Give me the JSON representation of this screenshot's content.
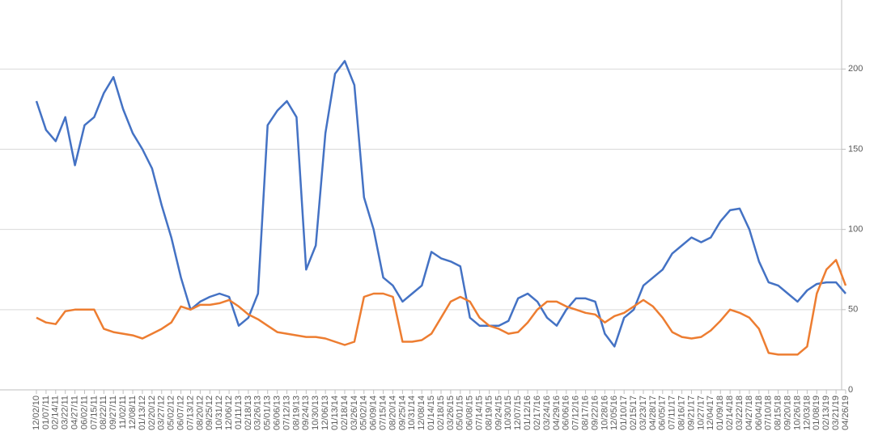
{
  "chart_data": {
    "type": "line",
    "categories": [
      "12/02/10",
      "01/07/11",
      "02/14/11",
      "03/22/11",
      "04/27/11",
      "06/02/11",
      "07/15/11",
      "08/22/11",
      "09/27/11",
      "11/02/11",
      "12/08/11",
      "01/13/12",
      "02/20/12",
      "03/27/12",
      "05/02/12",
      "06/07/12",
      "07/13/12",
      "08/20/12",
      "09/25/12",
      "10/31/12",
      "12/06/12",
      "01/11/13",
      "02/18/13",
      "03/26/13",
      "05/01/13",
      "06/06/13",
      "07/12/13",
      "08/19/13",
      "09/24/13",
      "10/30/13",
      "12/06/13",
      "01/13/14",
      "02/18/14",
      "03/26/14",
      "05/02/14",
      "06/09/14",
      "07/15/14",
      "08/20/14",
      "09/25/14",
      "10/31/14",
      "12/08/14",
      "01/14/15",
      "02/18/15",
      "03/26/15",
      "05/01/15",
      "06/08/15",
      "07/14/15",
      "08/19/15",
      "09/24/15",
      "10/30/15",
      "12/07/15",
      "01/12/16",
      "02/17/16",
      "03/24/16",
      "04/29/16",
      "06/06/16",
      "07/12/16",
      "08/17/16",
      "09/22/16",
      "10/28/16",
      "12/05/16",
      "01/10/17",
      "02/15/17",
      "03/23/17",
      "04/28/17",
      "06/05/17",
      "07/11/17",
      "08/16/17",
      "09/21/17",
      "10/27/17",
      "12/04/17",
      "01/09/18",
      "02/14/18",
      "03/22/18",
      "04/27/18",
      "06/04/18",
      "07/10/18",
      "08/15/18",
      "09/20/18",
      "10/26/18",
      "12/03/18",
      "01/08/19",
      "02/13/19",
      "03/21/19",
      "04/26/19"
    ],
    "series": [
      {
        "color": "#4472c4",
        "values": [
          180,
          162,
          155,
          170,
          140,
          165,
          170,
          185,
          195,
          175,
          160,
          150,
          138,
          115,
          95,
          70,
          50,
          55,
          58,
          60,
          58,
          40,
          45,
          60,
          165,
          174,
          180,
          170,
          75,
          90,
          160,
          197,
          205,
          190,
          120,
          100,
          70,
          65,
          55,
          60,
          65,
          86,
          82,
          80,
          77,
          45,
          40,
          40,
          40,
          43,
          57,
          60,
          55,
          45,
          40,
          50,
          57,
          57,
          55,
          35,
          27,
          45,
          50,
          65,
          70,
          75,
          85,
          90,
          95,
          92,
          95,
          105,
          112,
          113,
          100,
          80,
          67,
          65,
          60,
          55,
          62,
          66,
          67,
          67,
          60
        ]
      },
      {
        "color": "#ed7d31",
        "values": [
          45,
          42,
          41,
          49,
          50,
          50,
          50,
          38,
          36,
          35,
          34,
          32,
          35,
          38,
          42,
          52,
          50,
          53,
          53,
          54,
          56,
          52,
          47,
          44,
          40,
          36,
          35,
          34,
          33,
          33,
          32,
          30,
          28,
          30,
          58,
          60,
          60,
          58,
          30,
          30,
          31,
          35,
          45,
          55,
          58,
          55,
          45,
          40,
          38,
          35,
          36,
          42,
          50,
          55,
          55,
          52,
          50,
          48,
          47,
          42,
          46,
          48,
          52,
          56,
          52,
          45,
          36,
          33,
          32,
          33,
          37,
          43,
          50,
          48,
          45,
          38,
          23,
          22,
          22,
          22,
          27,
          60,
          75,
          81,
          65
        ]
      }
    ],
    "ylim": [
      0,
      240
    ],
    "yticks": [
      0,
      50,
      100,
      150,
      200
    ],
    "grid": true,
    "y_axis_side": "right"
  }
}
